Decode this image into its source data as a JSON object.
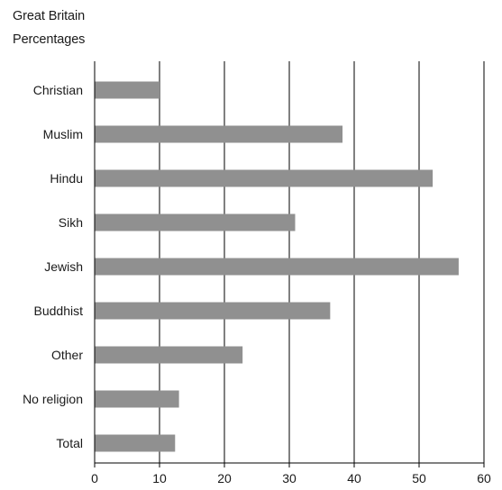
{
  "subtitles": [
    "Great Britain",
    "Percentages"
  ],
  "colors": {
    "bar": "#909090",
    "axis": "#000000",
    "text": "#1a1a1a"
  },
  "chart_data": {
    "type": "bar",
    "orientation": "horizontal",
    "title": "",
    "xlabel": "",
    "ylabel": "",
    "categories": [
      "Christian",
      "Muslim",
      "Hindu",
      "Sikh",
      "Jewish",
      "Buddhist",
      "Other",
      "No religion",
      "Total"
    ],
    "values": [
      10,
      38.2,
      52.1,
      30.9,
      56.1,
      36.3,
      22.8,
      13,
      12.4
    ],
    "xlim": [
      0,
      60
    ],
    "xticks": [
      0,
      10,
      20,
      30,
      40,
      50,
      60
    ],
    "grid": "vertical",
    "legend": "none"
  }
}
